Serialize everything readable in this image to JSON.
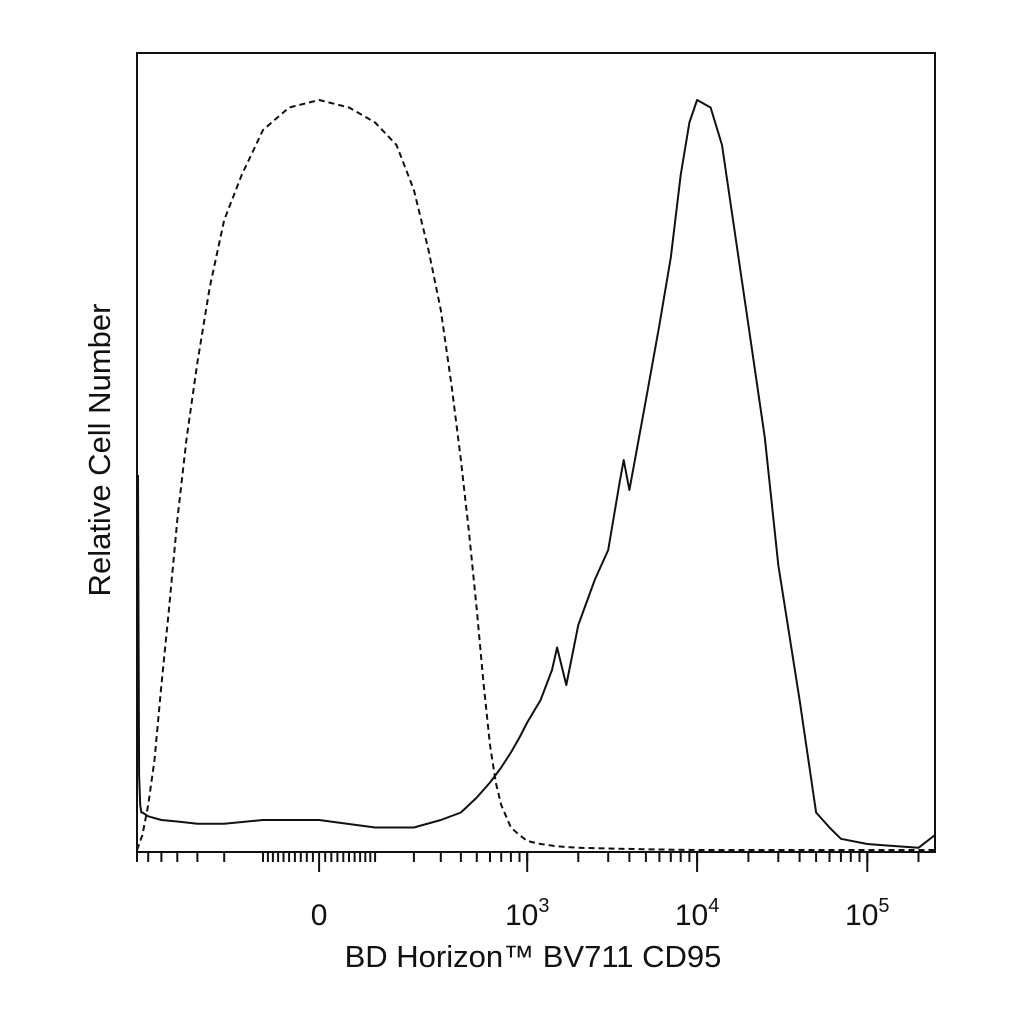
{
  "chart_data": {
    "type": "line",
    "title": "",
    "xlabel": "BD Horizon™ BV711 CD95",
    "ylabel": "Relative Cell Number",
    "x_scale": "biexponential",
    "x_ticks": [
      {
        "value": 0,
        "label": "0",
        "exponent": ""
      },
      {
        "value": 1000,
        "label": "10",
        "exponent": "3"
      },
      {
        "value": 10000,
        "label": "10",
        "exponent": "4"
      },
      {
        "value": 100000,
        "label": "10",
        "exponent": "5"
      }
    ],
    "xlim": [
      -700,
      250000
    ],
    "ylim": [
      0,
      100
    ],
    "grid": false,
    "legend": "none",
    "series": [
      {
        "style": "dashed",
        "color": "#111111",
        "x": [
          -700,
          -650,
          -600,
          -550,
          -500,
          -450,
          -400,
          -350,
          -300,
          -250,
          -200,
          -150,
          -100,
          -50,
          0,
          50,
          100,
          150,
          200,
          250,
          300,
          350,
          400,
          450,
          500,
          550,
          600,
          650,
          700,
          800,
          900,
          1000,
          1200,
          1500,
          2000,
          3000,
          5000,
          10000,
          20000,
          50000,
          100000,
          250000
        ],
        "y": [
          0,
          2,
          6,
          12,
          22,
          32,
          44,
          55,
          65,
          75,
          84,
          90,
          96,
          99,
          100,
          99,
          97,
          94,
          88,
          80,
          72,
          62,
          52,
          42,
          32,
          22,
          14,
          9,
          6,
          3,
          2,
          1.2,
          0.8,
          0.5,
          0.3,
          0.2,
          0.1,
          0,
          0,
          0,
          0,
          0
        ]
      },
      {
        "style": "solid",
        "color": "#111111",
        "x": [
          -690,
          -680,
          -670,
          -660,
          -650,
          -600,
          -500,
          -400,
          -300,
          -200,
          -100,
          0,
          100,
          200,
          300,
          400,
          500,
          600,
          700,
          800,
          900,
          1000,
          1200,
          1400,
          1500,
          1700,
          2000,
          2500,
          3000,
          3500,
          3700,
          4000,
          5000,
          6000,
          7000,
          8000,
          9000,
          10000,
          12000,
          14000,
          16000,
          20000,
          25000,
          30000,
          40000,
          50000,
          60000,
          70000,
          100000,
          150000,
          200000,
          250000
        ],
        "y": [
          50,
          10,
          6,
          5,
          5,
          4.5,
          4,
          3.8,
          3.5,
          3.5,
          4,
          4,
          3,
          3,
          4,
          5,
          7,
          9,
          11,
          13,
          15,
          17,
          20,
          24,
          27,
          22,
          30,
          36,
          40,
          49,
          52,
          48,
          60,
          70,
          79,
          90,
          97,
          100,
          99,
          94,
          85,
          70,
          55,
          38,
          20,
          5,
          3,
          1.5,
          0.8,
          0.5,
          0.3,
          2
        ]
      }
    ]
  }
}
